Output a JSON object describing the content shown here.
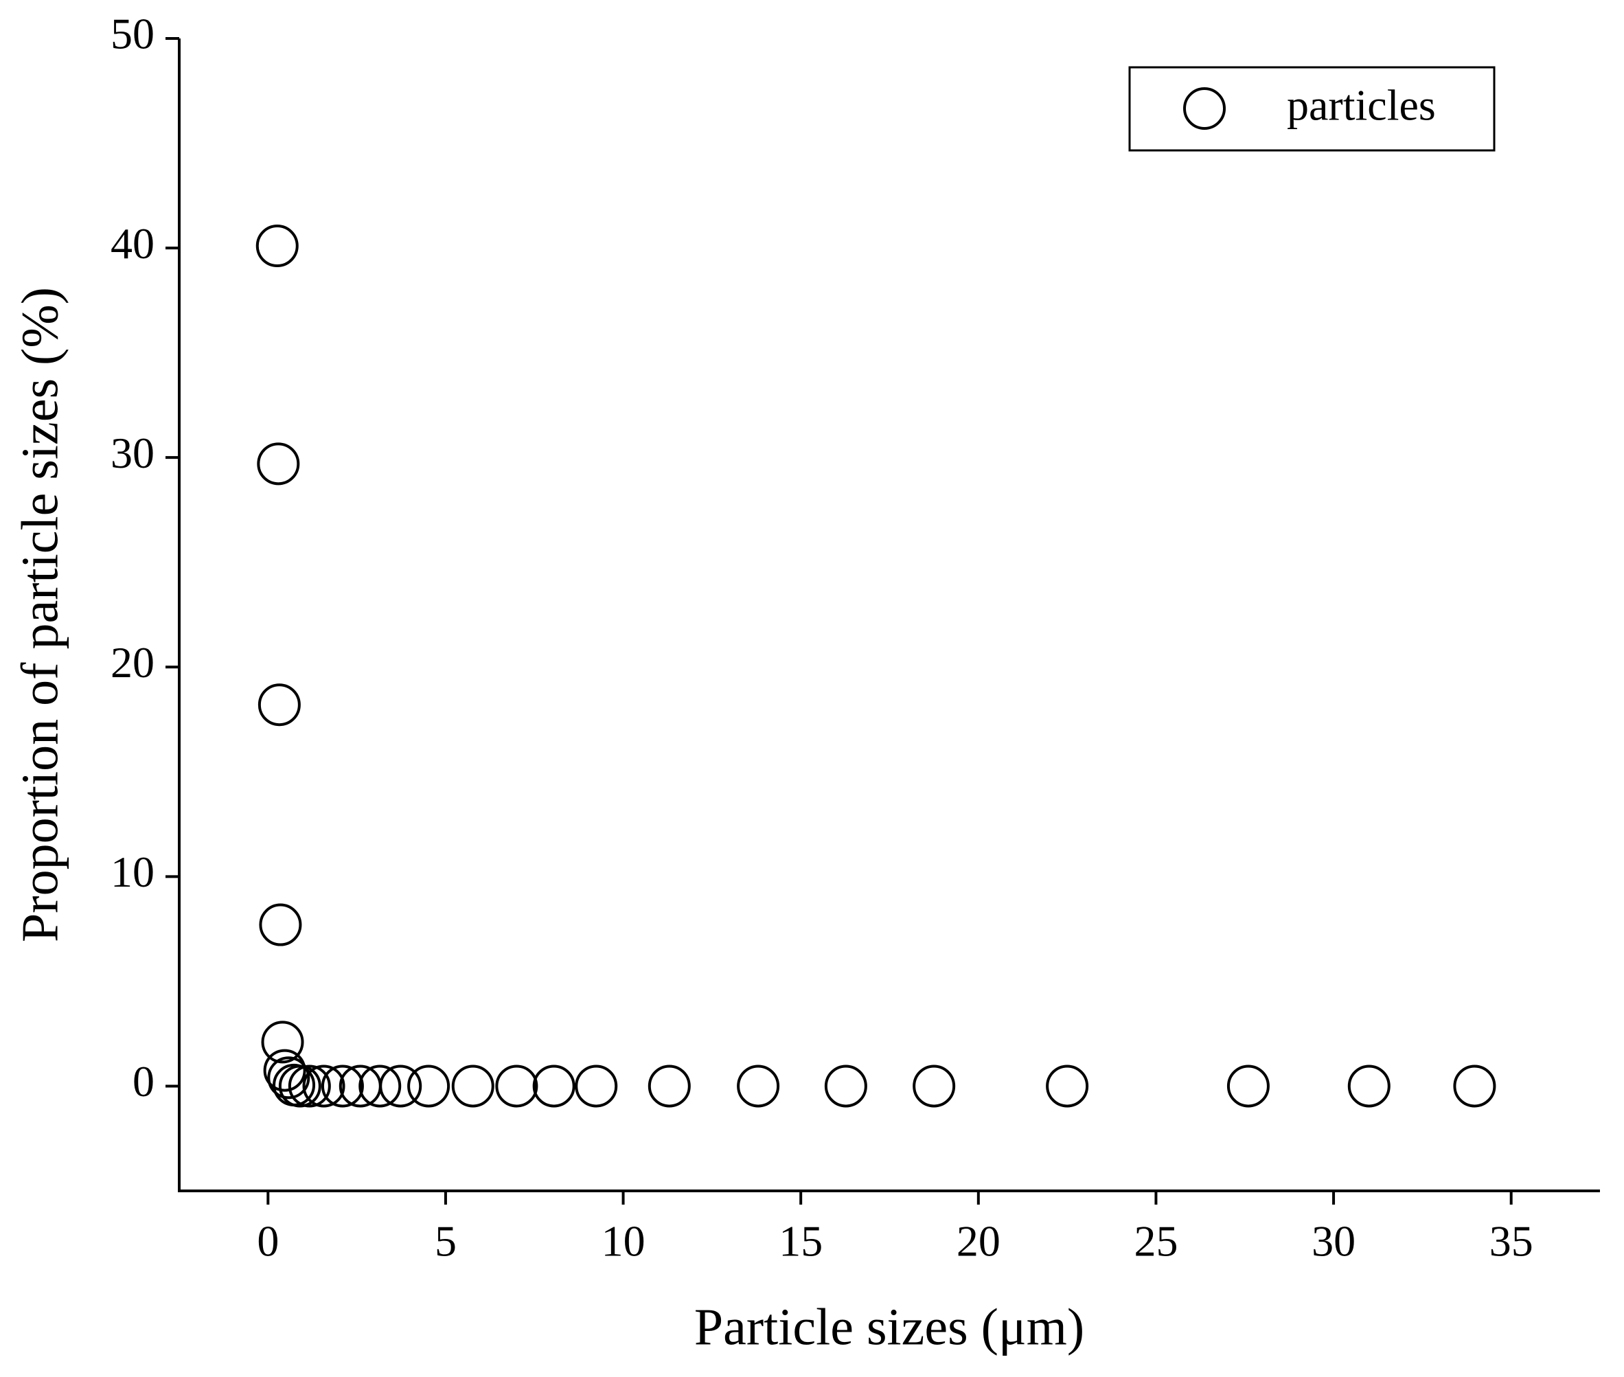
{
  "chart_data": {
    "type": "scatter",
    "xlabel": "Particle sizes (μm)",
    "ylabel": "Proportion of particle sizes (%)",
    "xlim": [
      -2.5,
      37.5
    ],
    "xticks": [
      0,
      5,
      10,
      15,
      20,
      25,
      30,
      35
    ],
    "ylim": [
      -5,
      50
    ],
    "yticks": [
      0,
      10,
      20,
      30,
      40,
      50
    ],
    "legend": "upper right",
    "series": [
      {
        "name": "particles",
        "color": "#000000",
        "x": [
          0.26,
          0.29,
          0.32,
          0.35,
          0.41,
          0.47,
          0.58,
          0.73,
          0.9,
          1.17,
          1.57,
          2.1,
          2.6,
          3.15,
          3.73,
          4.52,
          5.77,
          7.0,
          8.05,
          9.24,
          11.3,
          13.8,
          16.27,
          18.75,
          22.5,
          27.6,
          31.0,
          33.97
        ],
        "values": [
          40.1,
          29.7,
          18.2,
          7.7,
          2.1,
          0.75,
          0.4,
          0.05,
          0,
          0,
          0,
          0,
          0,
          0,
          0,
          0,
          0,
          0,
          0,
          0,
          0,
          0,
          0,
          0,
          0,
          0,
          0,
          0
        ]
      }
    ]
  }
}
